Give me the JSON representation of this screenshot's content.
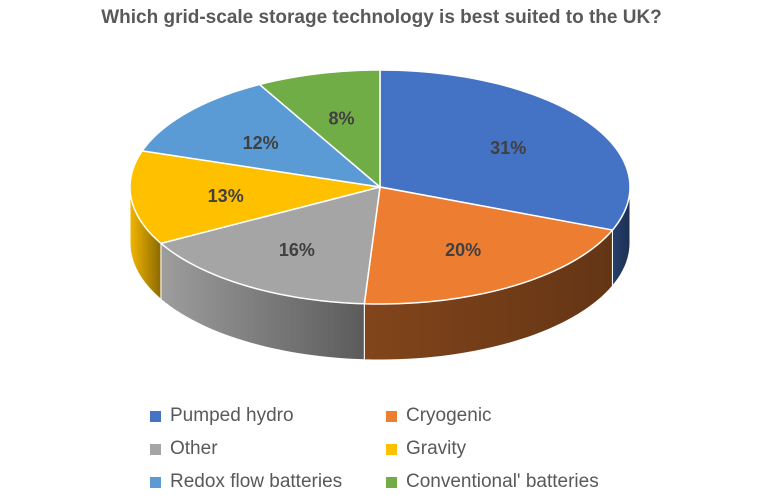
{
  "chart_data": {
    "type": "pie",
    "style": "3d",
    "title": "Which grid-scale storage technology is best suited to the UK?",
    "slices": [
      {
        "name": "Pumped hydro",
        "value": 31,
        "label": "31%",
        "color": "#4472C4"
      },
      {
        "name": "Cryogenic",
        "value": 20,
        "label": "20%",
        "color": "#ED7D31"
      },
      {
        "name": "Other",
        "value": 16,
        "label": "16%",
        "color": "#A5A5A5"
      },
      {
        "name": "Gravity",
        "value": 13,
        "label": "13%",
        "color": "#FFC000"
      },
      {
        "name": "Redox flow batteries",
        "value": 12,
        "label": "12%",
        "color": "#5B9BD5"
      },
      {
        "name": "Conventional' batteries",
        "value": 8,
        "label": "8%",
        "color": "#70AD47"
      }
    ],
    "legend_position": "bottom"
  }
}
